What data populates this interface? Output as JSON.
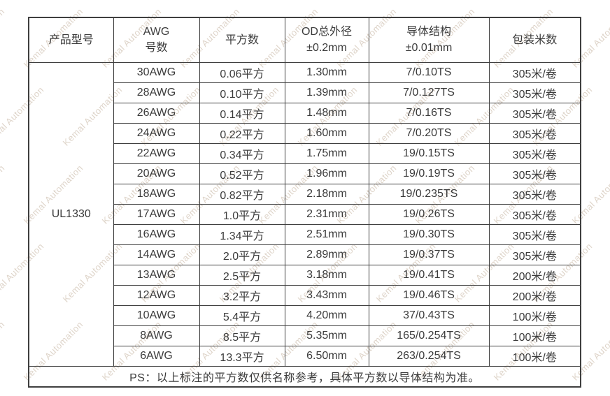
{
  "colors": {
    "text": "#3b3b3b",
    "border": "#3f3f3f",
    "background": "#ffffff",
    "watermark": "#bdaa94"
  },
  "watermark": {
    "text": "Kemal Automation"
  },
  "table": {
    "headers": {
      "product_model": "产品型号",
      "awg": "AWG\n号数",
      "sqmm": "平方数",
      "od": "OD总外径\n±0.2mm",
      "conductor": "导体结构\n±0.01mm",
      "packing": "包装米数"
    },
    "product_model": "UL1330",
    "rows": [
      {
        "awg": "30AWG",
        "sqmm": "0.06平方",
        "od": "1.30mm",
        "conductor": "7/0.10TS",
        "packing": "305米/卷"
      },
      {
        "awg": "28AWG",
        "sqmm": "0.10平方",
        "od": "1.39mm",
        "conductor": "7/0.127TS",
        "packing": "305米/卷"
      },
      {
        "awg": "26AWG",
        "sqmm": "0.14平方",
        "od": "1.48mm",
        "conductor": "7/0.16TS",
        "packing": "305米/卷"
      },
      {
        "awg": "24AWG",
        "sqmm": "0.22平方",
        "od": "1.60mm",
        "conductor": "7/0.20TS",
        "packing": "305米/卷"
      },
      {
        "awg": "22AWG",
        "sqmm": "0.34平方",
        "od": "1.75mm",
        "conductor": "19/0.15TS",
        "packing": "305米/卷"
      },
      {
        "awg": "20AWG",
        "sqmm": "0.52平方",
        "od": "1.96mm",
        "conductor": "19/0.19TS",
        "packing": "305米/卷"
      },
      {
        "awg": "18AWG",
        "sqmm": "0.82平方",
        "od": "2.18mm",
        "conductor": "19/0.235TS",
        "packing": "305米/卷"
      },
      {
        "awg": "17AWG",
        "sqmm": "1.0平方",
        "od": "2.31mm",
        "conductor": "19/0.26TS",
        "packing": "305米/卷"
      },
      {
        "awg": "16AWG",
        "sqmm": "1.34平方",
        "od": "2.51mm",
        "conductor": "19/0.30TS",
        "packing": "305米/卷"
      },
      {
        "awg": "14AWG",
        "sqmm": "2.0平方",
        "od": "2.89mm",
        "conductor": "19/0.37TS",
        "packing": "305米/卷"
      },
      {
        "awg": "13AWG",
        "sqmm": "2.5平方",
        "od": "3.18mm",
        "conductor": "19/0.41TS",
        "packing": "200米/卷"
      },
      {
        "awg": "12AWG",
        "sqmm": "3.2平方",
        "od": "3.43mm",
        "conductor": "19/0.46TS",
        "packing": "200米/卷"
      },
      {
        "awg": "10AWG",
        "sqmm": "5.4平方",
        "od": "4.20mm",
        "conductor": "37/0.43TS",
        "packing": "100米/卷"
      },
      {
        "awg": "8AWG",
        "sqmm": "8.5平方",
        "od": "5.35mm",
        "conductor": "165/0.254TS",
        "packing": "100米/卷"
      },
      {
        "awg": "6AWG",
        "sqmm": "13.3平方",
        "od": "6.50mm",
        "conductor": "263/0.254TS",
        "packing": "100米/卷"
      }
    ],
    "footer_note": "PS：以上标注的平方数仅供名称参考，具体平方数以导体结构为准。"
  }
}
